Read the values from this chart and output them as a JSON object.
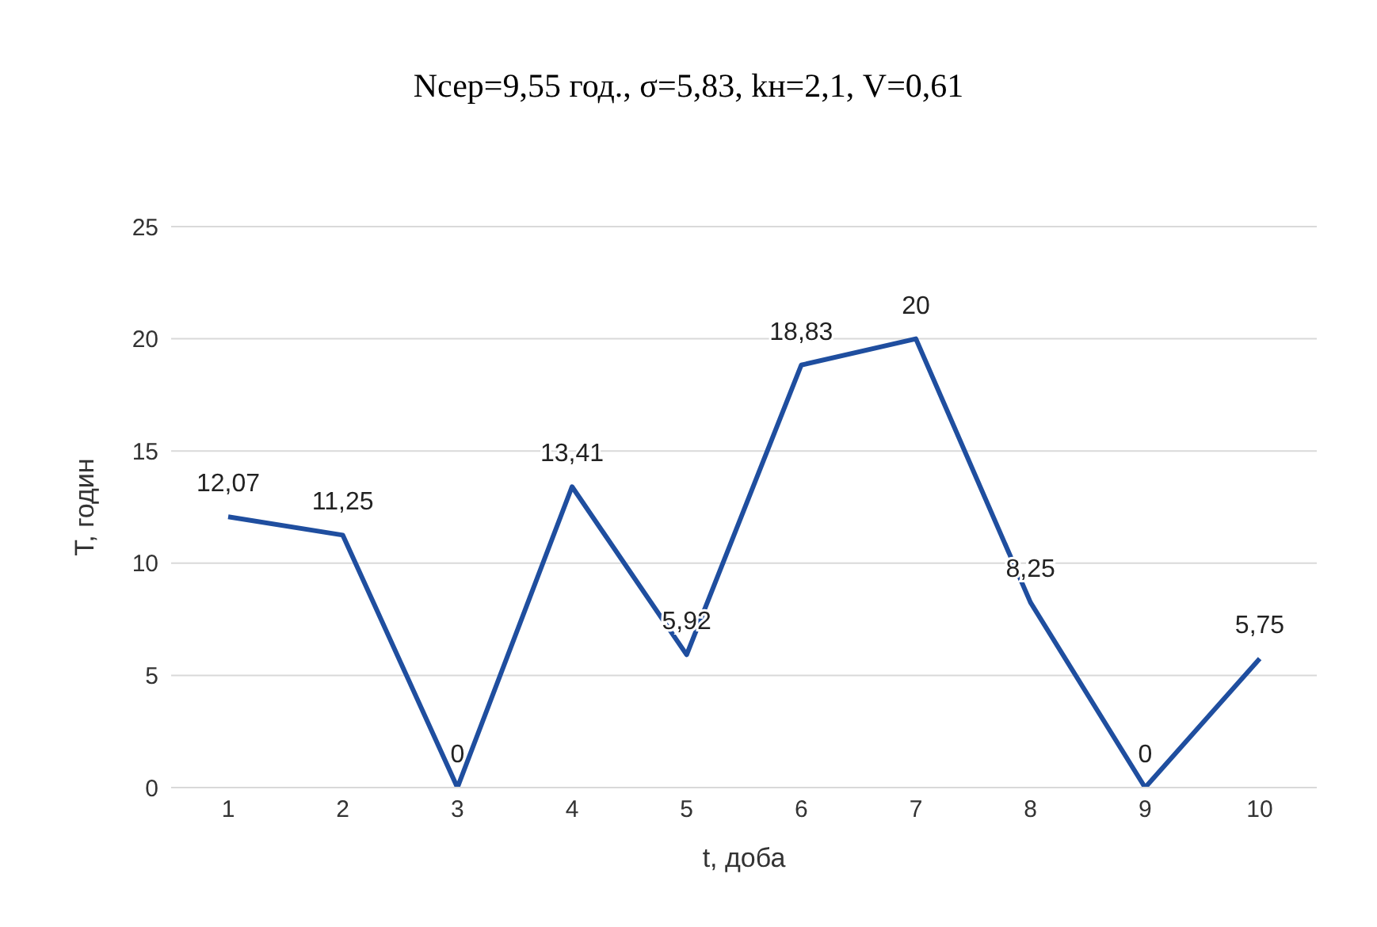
{
  "chart_data": {
    "type": "line",
    "title": "Nсер=9,55 год., σ=5,83, kн=2,1, V=0,61",
    "xlabel": "t, доба",
    "ylabel": "T, годин",
    "categories": [
      "1",
      "2",
      "3",
      "4",
      "5",
      "6",
      "7",
      "8",
      "9",
      "10"
    ],
    "series": [
      {
        "color": "#1f4e9f",
        "values": [
          12.07,
          11.25,
          0,
          13.41,
          5.92,
          18.83,
          20,
          8.25,
          0,
          5.75
        ],
        "value_labels": [
          "12,07",
          "11,25",
          "0",
          "13,41",
          "5,92",
          "18,83",
          "20",
          "8,25",
          "0",
          "5,75"
        ]
      }
    ],
    "ylim": [
      0,
      25
    ],
    "yticks": [
      0,
      5,
      10,
      15,
      20,
      25
    ],
    "grid": "y",
    "marker": "none",
    "line_style": "solid"
  }
}
